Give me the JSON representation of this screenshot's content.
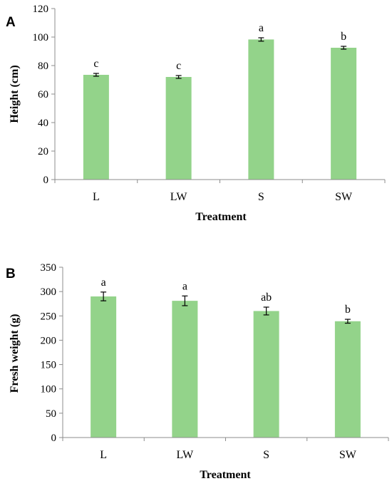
{
  "colors": {
    "bar": "#93d38a",
    "axis": "#8c8c8c",
    "error": "#000000"
  },
  "chart_data": [
    {
      "type": "bar",
      "panel_label": "A",
      "title": "",
      "xlabel": "Treatment",
      "ylabel": "Height (cm)",
      "categories": [
        "L",
        "LW",
        "S",
        "SW"
      ],
      "values": [
        73.5,
        72.0,
        98.3,
        92.5
      ],
      "errors": [
        1.0,
        1.0,
        1.2,
        1.0
      ],
      "significance": [
        "c",
        "c",
        "a",
        "b"
      ],
      "ylim": [
        0,
        120
      ],
      "yticks": [
        0,
        20,
        40,
        60,
        80,
        100,
        120
      ],
      "grid": false,
      "legend": "none"
    },
    {
      "type": "bar",
      "panel_label": "B",
      "title": "",
      "xlabel": "Treatment",
      "ylabel": "Fresh weight (g)",
      "categories": [
        "L",
        "LW",
        "S",
        "SW"
      ],
      "values": [
        290,
        281,
        260,
        239
      ],
      "errors": [
        9,
        10,
        8,
        4
      ],
      "significance": [
        "a",
        "a",
        "ab",
        "b"
      ],
      "ylim": [
        0,
        350
      ],
      "yticks": [
        0,
        50,
        100,
        150,
        200,
        250,
        300,
        350
      ],
      "grid": false,
      "legend": "none"
    }
  ]
}
